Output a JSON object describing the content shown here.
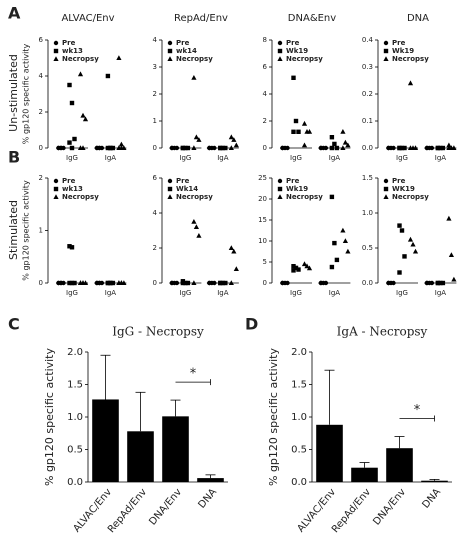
{
  "figure": {
    "panel_labels": [
      "A",
      "B",
      "C",
      "D"
    ],
    "row_labels": [
      "Un-stimulated",
      "Stimulated"
    ]
  },
  "chart_data": [
    {
      "type": "dot",
      "title": "ALVAC/Env",
      "ylabel": "% gp120 specific activity",
      "categories": [
        "IgG",
        "IgA"
      ],
      "ylim": [
        0,
        6
      ],
      "yticks": [
        0,
        2,
        4,
        6
      ],
      "series": [
        {
          "name": "Pre",
          "color": "#000000",
          "marker": "circle",
          "values": [
            [
              0,
              0,
              0,
              0,
              0
            ],
            [
              0,
              0,
              0,
              0,
              0
            ]
          ]
        },
        {
          "name": "wk13",
          "color": "#000000",
          "marker": "square",
          "values": [
            [
              3.5,
              2.5,
              0.5,
              0.3,
              0
            ],
            [
              4.0,
              0,
              0,
              0,
              0
            ]
          ]
        },
        {
          "name": "Necropsy",
          "color": "#000000",
          "marker": "triangle",
          "values": [
            [
              4.1,
              1.8,
              1.6,
              0,
              0
            ],
            [
              5.0,
              0.2,
              0,
              0,
              0
            ]
          ]
        }
      ]
    },
    {
      "type": "dot",
      "title": "RepAd/Env",
      "categories": [
        "IgG",
        "IgA"
      ],
      "ylim": [
        0,
        4
      ],
      "yticks": [
        0,
        1,
        2,
        3,
        4
      ],
      "series": [
        {
          "name": "Pre",
          "color": "#000000",
          "marker": "circle",
          "values": [
            [
              0,
              0,
              0,
              0
            ],
            [
              0,
              0,
              0,
              0
            ]
          ]
        },
        {
          "name": "wk14",
          "color": "#000000",
          "marker": "square",
          "values": [
            [
              0,
              0,
              0,
              0
            ],
            [
              0,
              0,
              0,
              0
            ]
          ]
        },
        {
          "name": "Necropsy",
          "color": "#000000",
          "marker": "triangle",
          "values": [
            [
              2.6,
              0.4,
              0.3,
              0
            ],
            [
              0.4,
              0.3,
              0.1,
              0
            ]
          ]
        }
      ]
    },
    {
      "type": "dot",
      "title": "DNA&Env",
      "categories": [
        "IgG",
        "IgA"
      ],
      "ylim": [
        0,
        8
      ],
      "yticks": [
        0,
        2,
        4,
        6,
        8
      ],
      "series": [
        {
          "name": "Pre",
          "color": "#000000",
          "marker": "circle",
          "values": [
            [
              0,
              0,
              0,
              0
            ],
            [
              0,
              0,
              0,
              0
            ]
          ]
        },
        {
          "name": "Wk19",
          "color": "#000000",
          "marker": "square",
          "values": [
            [
              5.2,
              2.0,
              1.2,
              1.2
            ],
            [
              0.8,
              0.3,
              0,
              0
            ]
          ]
        },
        {
          "name": "Necropsy",
          "color": "#000000",
          "marker": "triangle",
          "values": [
            [
              1.8,
              1.2,
              1.2,
              0.2
            ],
            [
              1.2,
              0.4,
              0.2,
              0
            ]
          ]
        }
      ]
    },
    {
      "type": "dot",
      "title": "DNA",
      "categories": [
        "IgG",
        "IgA"
      ],
      "ylim": [
        0,
        0.4
      ],
      "yticks": [
        {
          "value": 0,
          "label": "0.0"
        },
        0.1,
        0.2,
        0.3,
        0.4
      ],
      "series": [
        {
          "name": "Pre",
          "color": "#000000",
          "marker": "circle",
          "values": [
            [
              0,
              0,
              0,
              0
            ],
            [
              0,
              0,
              0,
              0
            ]
          ]
        },
        {
          "name": "Wk19",
          "color": "#000000",
          "marker": "square",
          "values": [
            [
              0,
              0,
              0,
              0
            ],
            [
              0,
              0,
              0,
              0
            ]
          ]
        },
        {
          "name": "Necropsy",
          "color": "#000000",
          "marker": "triangle",
          "values": [
            [
              0.24,
              0,
              0,
              0
            ],
            [
              0.01,
              0,
              0,
              0
            ]
          ]
        }
      ]
    },
    {
      "type": "dot",
      "title": null,
      "ylabel": "% gp120 specific activity",
      "categories": [
        "IgG",
        "IgA"
      ],
      "ylim": [
        0,
        2
      ],
      "yticks": [
        0,
        1,
        2
      ],
      "series": [
        {
          "name": "Pre",
          "color": "#000000",
          "marker": "circle",
          "values": [
            [
              0,
              0,
              0,
              0,
              0
            ],
            [
              0,
              0,
              0,
              0,
              0
            ]
          ]
        },
        {
          "name": "wk13",
          "color": "#000000",
          "marker": "square",
          "values": [
            [
              0.7,
              0.68,
              0,
              0,
              0
            ],
            [
              0,
              0,
              0,
              0,
              0
            ]
          ]
        },
        {
          "name": "Necropsy",
          "color": "#000000",
          "marker": "triangle",
          "values": [
            [
              0,
              0,
              0,
              0,
              0
            ],
            [
              0,
              0,
              0,
              0,
              0
            ]
          ]
        }
      ]
    },
    {
      "type": "dot",
      "title": null,
      "categories": [
        "IgG",
        "IgA"
      ],
      "ylim": [
        0,
        6
      ],
      "yticks": [
        0,
        2,
        4,
        6
      ],
      "series": [
        {
          "name": "Pre",
          "color": "#000000",
          "marker": "circle",
          "values": [
            [
              0,
              0,
              0,
              0
            ],
            [
              0,
              0,
              0,
              0
            ]
          ]
        },
        {
          "name": "Wk14",
          "color": "#000000",
          "marker": "square",
          "values": [
            [
              0.1,
              0,
              0,
              0
            ],
            [
              0,
              0,
              0,
              0
            ]
          ]
        },
        {
          "name": "Necropsy",
          "color": "#000000",
          "marker": "triangle",
          "values": [
            [
              3.5,
              3.2,
              2.7,
              0
            ],
            [
              2.0,
              1.8,
              0.8,
              0
            ]
          ]
        }
      ]
    },
    {
      "type": "dot",
      "title": null,
      "categories": [
        "IgG",
        "IgA"
      ],
      "ylim": [
        0,
        25
      ],
      "yticks": [
        0,
        5,
        10,
        15,
        20,
        25
      ],
      "series": [
        {
          "name": "Pre",
          "color": "#000000",
          "marker": "circle",
          "values": [
            [
              0,
              0,
              0,
              0
            ],
            [
              0,
              0,
              0,
              0
            ]
          ]
        },
        {
          "name": "Wk19",
          "color": "#000000",
          "marker": "square",
          "values": [
            [
              4.0,
              3.6,
              3.2,
              3.0
            ],
            [
              20.5,
              9.5,
              5.5,
              3.8
            ]
          ]
        },
        {
          "name": "Necropsy",
          "color": "#000000",
          "marker": "triangle",
          "values": [
            [
              4.5,
              4.0,
              3.5
            ],
            [
              12.5,
              10,
              7.5
            ]
          ]
        }
      ]
    },
    {
      "type": "dot",
      "title": null,
      "categories": [
        "IgG",
        "IgA"
      ],
      "ylim": [
        0,
        1.5
      ],
      "yticks": [
        {
          "value": 0,
          "label": "0.0"
        },
        0.5,
        {
          "value": 1,
          "label": "1.0"
        },
        1.5
      ],
      "series": [
        {
          "name": "Pre",
          "color": "#000000",
          "marker": "circle",
          "values": [
            [
              0,
              0,
              0,
              0
            ],
            [
              0,
              0,
              0,
              0
            ]
          ]
        },
        {
          "name": "WK19",
          "color": "#000000",
          "marker": "square",
          "values": [
            [
              0.82,
              0.75,
              0.38,
              0.15
            ],
            [
              0,
              0,
              0,
              0
            ]
          ]
        },
        {
          "name": "Necropsy",
          "color": "#000000",
          "marker": "triangle",
          "values": [
            [
              0.62,
              0.55,
              0.45
            ],
            [
              0.92,
              0.4,
              0.05
            ]
          ]
        }
      ]
    },
    {
      "type": "bar",
      "title": "IgG - Necropsy",
      "ylabel": "% gp120 specific activity",
      "categories": [
        "ALVAC/Env",
        "RepAd/Env",
        "DNA/Env",
        "DNA"
      ],
      "values": [
        1.27,
        0.78,
        1.01,
        0.06
      ],
      "errors": [
        0.68,
        0.6,
        0.25,
        0.05
      ],
      "color": "#000000",
      "annotation": "*",
      "ylim": [
        0,
        2
      ],
      "yticks": [
        {
          "value": 0,
          "label": "0.0"
        },
        0.5,
        {
          "value": 1,
          "label": "1.0"
        },
        1.5,
        {
          "value": 2,
          "label": "2.0"
        }
      ]
    },
    {
      "type": "bar",
      "title": "IgA - Necropsy",
      "ylabel": "% gp120 specific activity",
      "categories": [
        "ALVAC/Env",
        "RepAd/Env",
        "DNA/Env",
        "DNA"
      ],
      "values": [
        0.88,
        0.22,
        0.52,
        0.02
      ],
      "errors": [
        0.84,
        0.08,
        0.18,
        0.02
      ],
      "color": "#000000",
      "annotation": "*",
      "ylim": [
        0,
        2
      ],
      "yticks": [
        {
          "value": 0,
          "label": "0.0"
        },
        0.5,
        {
          "value": 1,
          "label": "1.0"
        },
        1.5,
        {
          "value": 2,
          "label": "2.0"
        }
      ]
    }
  ]
}
